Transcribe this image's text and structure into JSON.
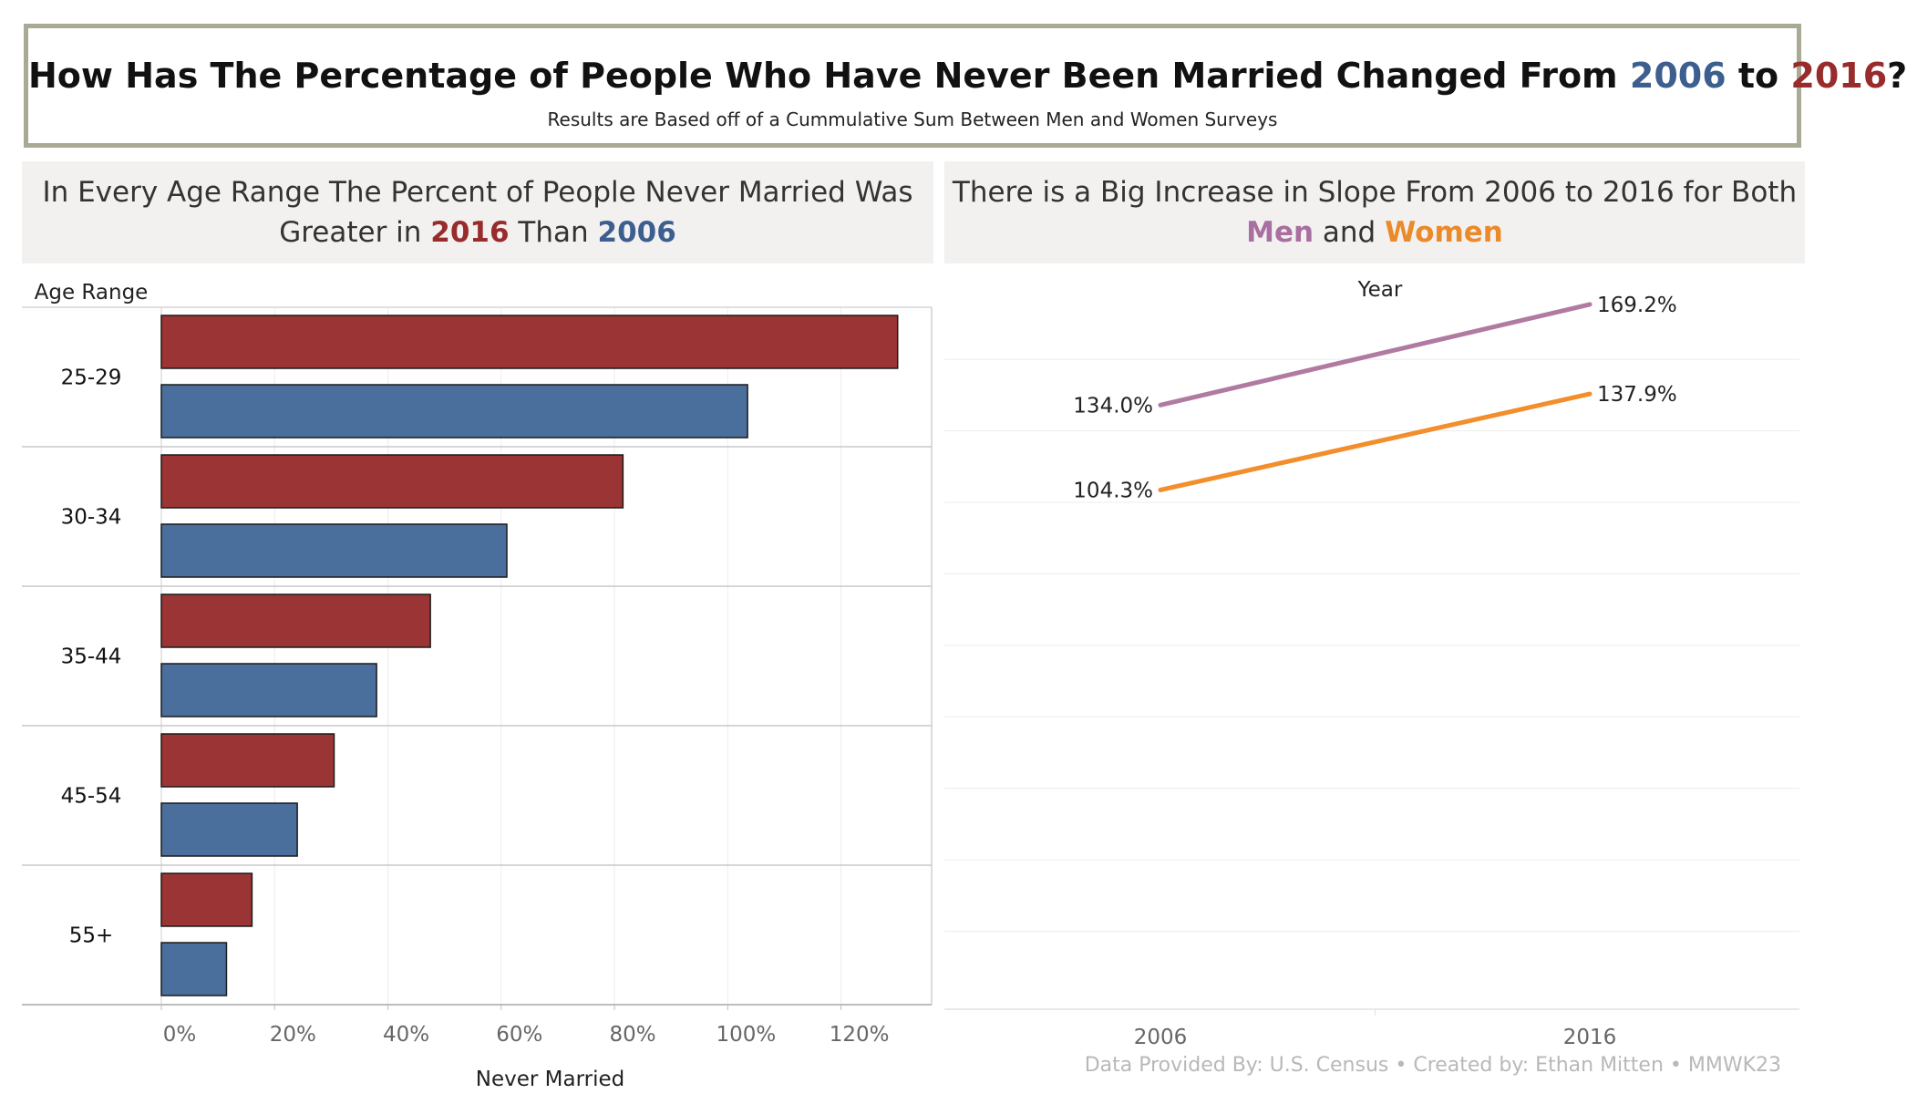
{
  "header": {
    "title_prefix": "How Has The Percentage of People Who Have Never Been Married Changed From ",
    "title_year1": "2006",
    "title_mid": " to ",
    "title_year2": "2016",
    "title_suffix": "?",
    "subtitle": "Results are Based off of a Cummulative Sum Between Men and Women Surveys",
    "color_2006": "#3d5f8f",
    "color_2016": "#982b2b"
  },
  "left_panel": {
    "heading_line1": "In Every Age Range The Percent of People Never Married Was",
    "heading_pre": "Greater in ",
    "heading_y1": "2016",
    "heading_mid": " Than ",
    "heading_y2": "2006"
  },
  "right_panel": {
    "heading_line1": "There is a Big Increase in Slope From 2006 to 2016 for Both",
    "heading_men": "Men",
    "heading_and": " and ",
    "heading_women": "Women"
  },
  "footer": {
    "credit": "Data Provided By: U.S. Census • Created by: Ethan Mitten • MMWK23"
  },
  "chart_data": [
    {
      "type": "bar",
      "orientation": "horizontal",
      "row_header": "Age Range",
      "xlabel": "Never Married",
      "categories": [
        "25-29",
        "30-34",
        "35-44",
        "45-54",
        "55+"
      ],
      "series": [
        {
          "name": "2016",
          "color": "#9b3535",
          "values": [
            130,
            81.5,
            47.5,
            30.5,
            16
          ]
        },
        {
          "name": "2006",
          "color": "#4a6f9c",
          "values": [
            103.5,
            61,
            38,
            24,
            11.5
          ]
        }
      ],
      "xlim": [
        0,
        136
      ],
      "xticks": [
        0,
        20,
        40,
        60,
        80,
        100,
        120
      ],
      "xtick_labels": [
        "0%",
        "20%",
        "40%",
        "60%",
        "80%",
        "100%",
        "120%"
      ],
      "grid": true
    },
    {
      "type": "line",
      "axis_title": "Year",
      "x": [
        "2006",
        "2016"
      ],
      "series": [
        {
          "name": "Men",
          "color": "#b07aa1",
          "values": [
            134.0,
            169.2
          ],
          "labels": [
            "134.0%",
            "169.2%"
          ]
        },
        {
          "name": "Women",
          "color": "#f28e2b",
          "values": [
            104.3,
            137.9
          ],
          "labels": [
            "104.3%",
            "137.9%"
          ]
        }
      ],
      "ylim": [
        -75,
        180
      ],
      "grid": true
    }
  ]
}
